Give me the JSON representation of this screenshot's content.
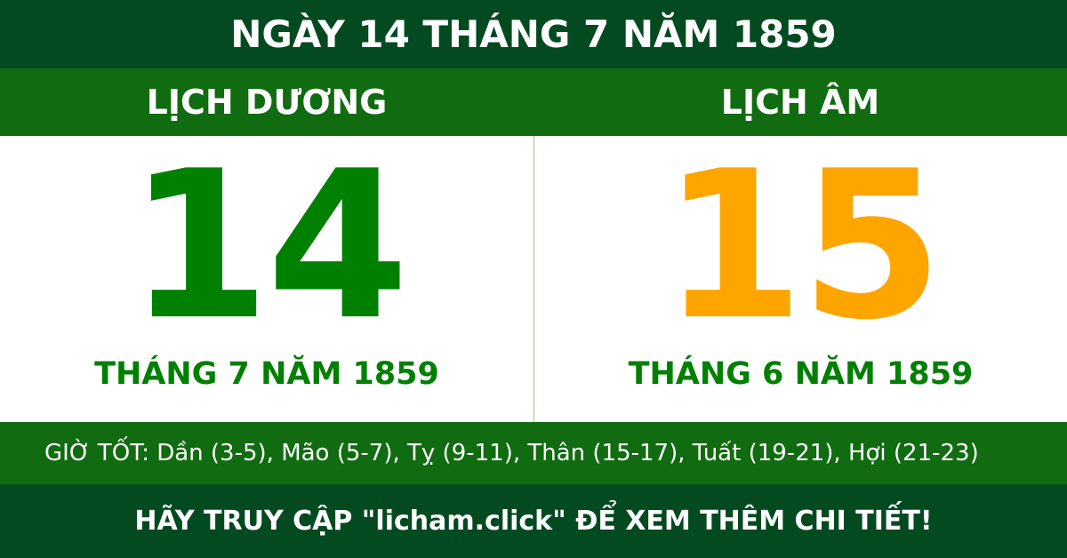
{
  "title": "NGÀY 14 THÁNG 7 NĂM 1859",
  "solar": {
    "heading": "LỊCH DƯƠNG",
    "day": "14",
    "month_year": "THÁNG 7 NĂM 1859"
  },
  "lunar": {
    "heading": "LỊCH ÂM",
    "day": "15",
    "month_year": "THÁNG 6 NĂM 1859"
  },
  "good_hours": "GIỜ TỐT: Dần (3-5), Mão (5-7), Tỵ (9-11), Thân (15-17), Tuất (19-21), Hợi (21-23)",
  "footer": "HÃY TRUY CẬP \"licham.click\" ĐỂ XEM THÊM CHI TIẾT!",
  "colors": {
    "dark_green": "#044a21",
    "green": "#116b10",
    "solar_day": "#008000",
    "lunar_day": "#ffa500"
  }
}
